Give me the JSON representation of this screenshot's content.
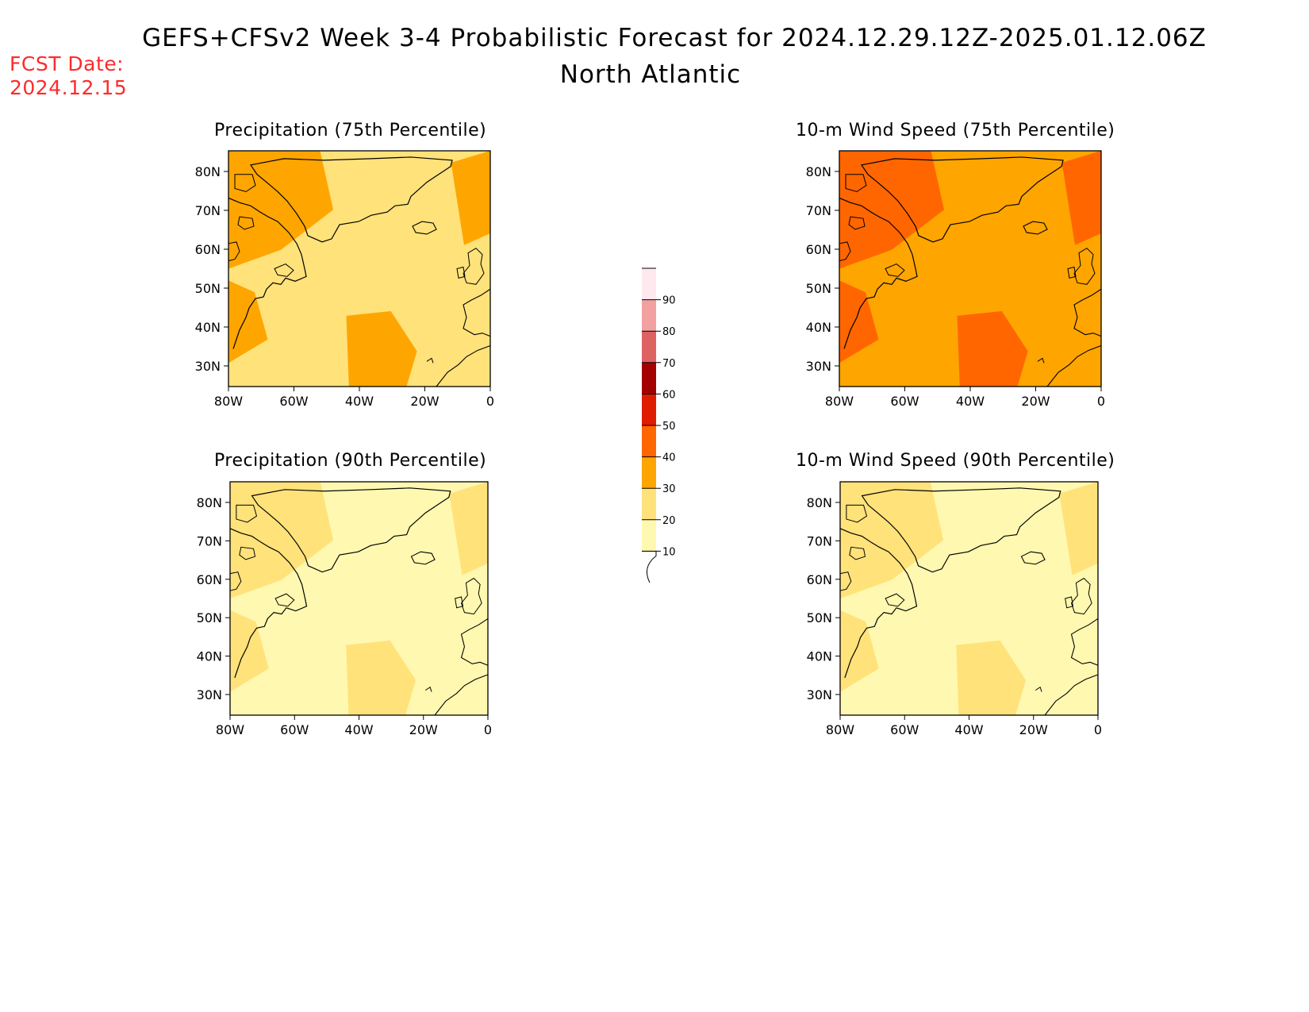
{
  "header": {
    "title": "GEFS+CFSv2 Week 3-4 Probabilistic Forecast for 2024.12.29.12Z-2025.01.12.06Z",
    "subtitle": "North Atlantic",
    "fcst_label": "FCST Date:",
    "fcst_date": "2024.12.15"
  },
  "colors": {
    "c10": "#fff8b0",
    "c20": "#ffe27a",
    "c30": "#ffa500",
    "c40": "#ff6600",
    "c50": "#e01c00",
    "c60": "#a50000",
    "c70": "#de6262",
    "c80": "#f2a0a0",
    "c90": "#ffe8ee"
  },
  "axis": {
    "lat_ticks": [
      "80N",
      "70N",
      "60N",
      "50N",
      "40N",
      "30N"
    ],
    "lon_ticks": [
      "80W",
      "60W",
      "40W",
      "20W",
      "0"
    ]
  },
  "colorbar": {
    "labels": [
      "10",
      "20",
      "30",
      "40",
      "50",
      "60",
      "70",
      "80",
      "90"
    ]
  },
  "panels": [
    {
      "id": "precip75",
      "title": "Precipitation (75th Percentile)",
      "base_level": "20",
      "high_level": "30"
    },
    {
      "id": "wind75",
      "title": "10-m Wind Speed (75th Percentile)",
      "base_level": "30",
      "high_level": "40"
    },
    {
      "id": "precip90",
      "title": "Precipitation (90th Percentile)",
      "base_level": "10",
      "high_level": "20"
    },
    {
      "id": "wind90",
      "title": "10-m Wind Speed (90th Percentile)",
      "base_level": "10",
      "high_level": "20"
    }
  ]
}
